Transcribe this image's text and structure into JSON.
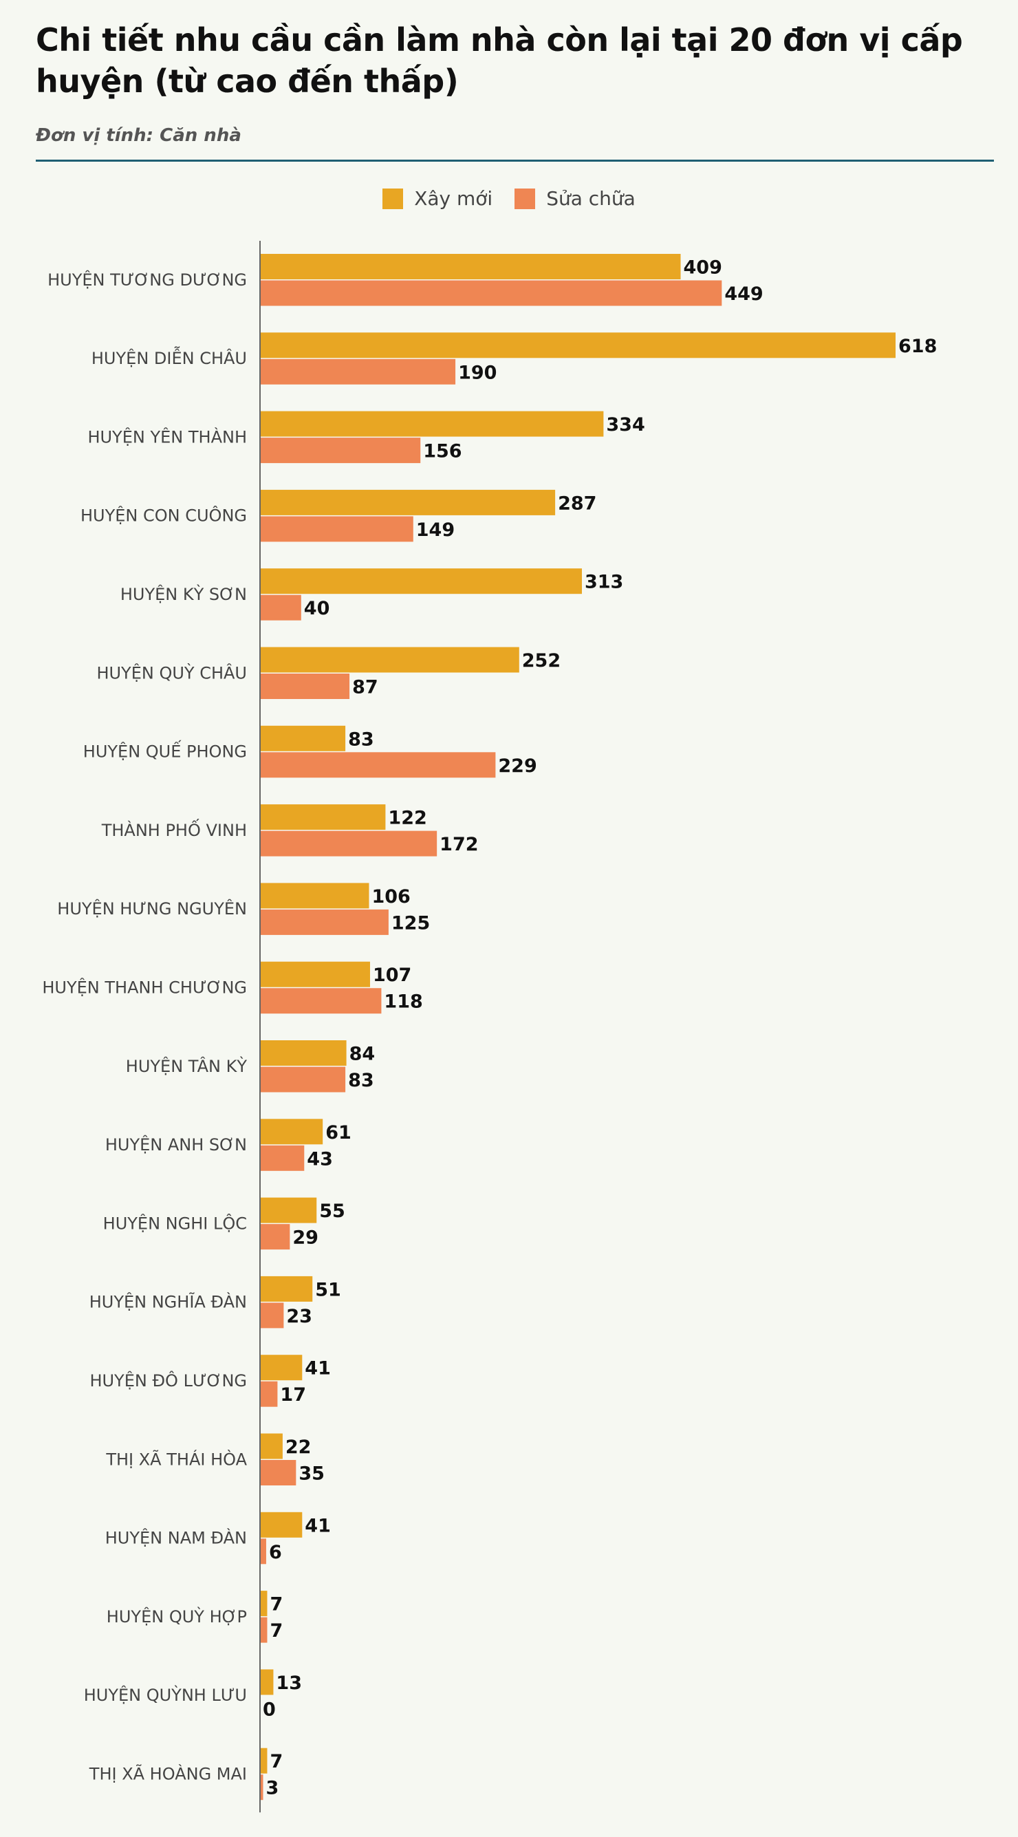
{
  "chart_data": {
    "type": "bar",
    "orientation": "horizontal",
    "title": "Chi tiết nhu cầu cần làm nhà còn lại tại 20 đơn vị cấp huyện (từ cao đến thấp)",
    "subtitle": "Đơn vị tính: Căn nhà",
    "legend_position": "top",
    "grid": false,
    "xlim": [
      0,
      640
    ],
    "categories": [
      "HUYỆN TƯƠNG DƯƠNG",
      "HUYỆN DIỄN CHÂU",
      "HUYỆN YÊN THÀNH",
      "HUYỆN CON CUÔNG",
      "HUYỆN KỲ SƠN",
      "HUYỆN QUỲ CHÂU",
      "HUYỆN QUẾ PHONG",
      "THÀNH PHỐ VINH",
      "HUYỆN HƯNG NGUYÊN",
      "HUYỆN THANH CHƯƠNG",
      "HUYỆN TÂN KỲ",
      "HUYỆN ANH SƠN",
      "HUYỆN NGHI LỘC",
      "HUYỆN NGHĨA ĐÀN",
      "HUYỆN ĐÔ LƯƠNG",
      "THỊ XÃ THÁI HÒA",
      "HUYỆN NAM ĐÀN",
      "HUYỆN QUỲ HỢP",
      "HUYỆN QUỲNH LƯU",
      "THỊ XÃ HOÀNG MAI"
    ],
    "series": [
      {
        "name": "Xây mới",
        "color": "#e8a623",
        "values": [
          409,
          618,
          334,
          287,
          313,
          252,
          83,
          122,
          106,
          107,
          84,
          61,
          55,
          51,
          41,
          22,
          41,
          7,
          13,
          7
        ]
      },
      {
        "name": "Sửa chữa",
        "color": "#ef8653",
        "values": [
          449,
          190,
          156,
          149,
          40,
          87,
          229,
          172,
          125,
          118,
          83,
          43,
          29,
          23,
          17,
          35,
          6,
          7,
          0,
          3
        ]
      }
    ]
  }
}
